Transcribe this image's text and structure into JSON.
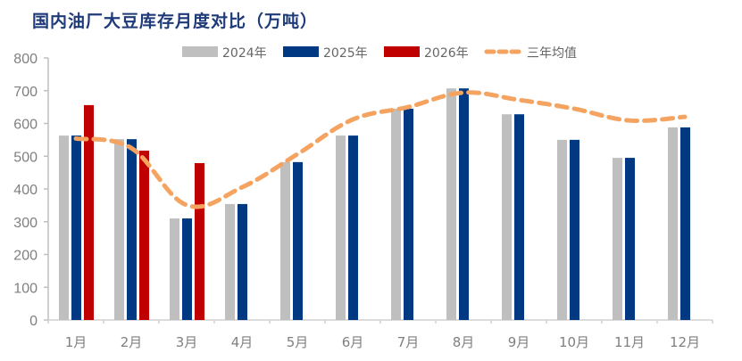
{
  "chart_data": {
    "type": "bar",
    "title": "国内油厂大豆库存月度对比（万吨）",
    "xlabel": "",
    "ylabel": "",
    "ylim": [
      0,
      800
    ],
    "yticks": [
      "0",
      "100",
      "200",
      "300",
      "400",
      "500",
      "600",
      "700",
      "800"
    ],
    "categories": [
      "1月",
      "2月",
      "3月",
      "4月",
      "5月",
      "6月",
      "7月",
      "8月",
      "9月",
      "10月",
      "11月",
      "12月"
    ],
    "series": [
      {
        "name": "2024年",
        "type": "bar",
        "color": "#bfbfbf",
        "values": [
          563,
          552,
          310,
          354,
          482,
          563,
          645,
          707,
          628,
          550,
          495,
          588
        ]
      },
      {
        "name": "2025年",
        "type": "bar",
        "color": "#003882",
        "values": [
          563,
          552,
          310,
          354,
          482,
          563,
          645,
          707,
          628,
          550,
          495,
          588
        ]
      },
      {
        "name": "2026年",
        "type": "bar",
        "color": "#c00000",
        "values": [
          656,
          517,
          479,
          null,
          null,
          null,
          null,
          null,
          null,
          null,
          null,
          null
        ]
      },
      {
        "name": "三年均值",
        "type": "line",
        "style": "dashed",
        "color": "#f4a460",
        "values": [
          554,
          525,
          351,
          405,
          506,
          612,
          650,
          694,
          672,
          645,
          609,
          620
        ]
      }
    ],
    "legend_position": "top",
    "grid": false
  }
}
